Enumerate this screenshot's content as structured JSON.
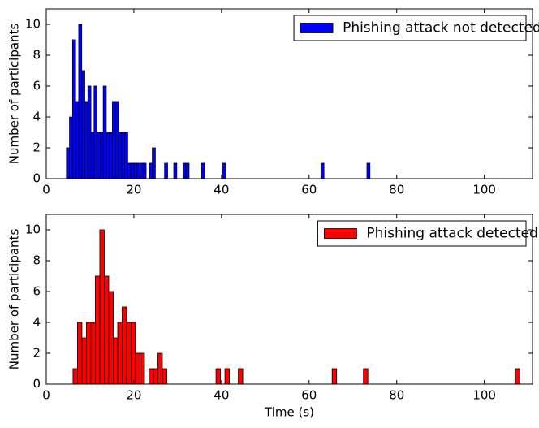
{
  "chart_data": [
    {
      "type": "histogram",
      "ylabel": "Number of participants",
      "bins": [
        4.6,
        5.3,
        6,
        6.7,
        7.4,
        8.1,
        8.8,
        9.5,
        10.2,
        10.9,
        11.6,
        12.3,
        13,
        13.7,
        14.4,
        15.1,
        15.8,
        16.5,
        17.2,
        17.9,
        18.6,
        19.3,
        20,
        20.7,
        21.4,
        22.1,
        22.8,
        23.5,
        24.2,
        24.9,
        25.6,
        26.3,
        27,
        27.7,
        28.4,
        29.1,
        29.8,
        30.5,
        31.2,
        31.9,
        32.6,
        33.3,
        34,
        34.7,
        35.4,
        36.1,
        36.8,
        37.5,
        38.2,
        38.9,
        39.6,
        40.3,
        41,
        41.7,
        42.4,
        43.1,
        43.8,
        44.5,
        45.2,
        45.9,
        46.6,
        47.3,
        48,
        48.7,
        49.4,
        50.1,
        50.8,
        51.5,
        52.2,
        52.9,
        53.6,
        54.3,
        55,
        55.7,
        56.4,
        57.1,
        57.8,
        58.5,
        59.2,
        59.9,
        60.6,
        61.3,
        62,
        62.7,
        63.4,
        64.1,
        64.8,
        65.5,
        66.2,
        66.9,
        67.6,
        68.3,
        69,
        69.7,
        70.4,
        71.1,
        71.8,
        72.5,
        73.2,
        73.9,
        74.6
      ],
      "series": [
        {
          "name": "Phishing attack not detected",
          "color": "#0000ff",
          "values": [
            2,
            4,
            9,
            5,
            10,
            7,
            5,
            6,
            3,
            6,
            3,
            3,
            6,
            3,
            3,
            5,
            5,
            3,
            3,
            3,
            1,
            1,
            1,
            1,
            1,
            1,
            0,
            1,
            2,
            0,
            0,
            0,
            1,
            0,
            0,
            1,
            0,
            0,
            1,
            1,
            0,
            0,
            0,
            0,
            1,
            0,
            0,
            0,
            0,
            0,
            0,
            1,
            0,
            0,
            0,
            0,
            0,
            0,
            0,
            0,
            0,
            0,
            0,
            0,
            0,
            0,
            0,
            0,
            0,
            0,
            0,
            0,
            0,
            0,
            0,
            0,
            0,
            0,
            0,
            0,
            0,
            0,
            0,
            1,
            0,
            0,
            0,
            0,
            0,
            0,
            0,
            0,
            0,
            0,
            0,
            0,
            0,
            0,
            1,
            0
          ]
        }
      ],
      "xlim": [
        0,
        111
      ],
      "xticks": [
        0,
        20,
        40,
        60,
        80,
        100
      ],
      "ylim": [
        0,
        11
      ],
      "yticks": [
        0,
        2,
        4,
        6,
        8,
        10
      ],
      "legend": "upper right"
    },
    {
      "type": "histogram",
      "ylabel": "Number of participants",
      "xlabel": "Time (s)",
      "bins": [
        6.1,
        7.12,
        8.14,
        9.16,
        10.18,
        11.2,
        12.22,
        13.24,
        14.26,
        15.28,
        16.3,
        17.32,
        18.34,
        19.36,
        20.38,
        21.4,
        22.42,
        23.44,
        24.46,
        25.48,
        26.5,
        27.52,
        28.54,
        29.56,
        30.58,
        31.6,
        32.62,
        33.64,
        34.66,
        35.68,
        36.7,
        37.72,
        38.74,
        39.76,
        40.78,
        41.8,
        42.82,
        43.84,
        44.86,
        45.88,
        46.9,
        47.92,
        48.94,
        49.96,
        50.98,
        52,
        53.02,
        54.04,
        55.06,
        56.08,
        57.1,
        58.12,
        59.14,
        60.16,
        61.18,
        62.2,
        63.22,
        64.24,
        65.26,
        66.28,
        67.3,
        68.32,
        69.34,
        70.36,
        71.38,
        72.4,
        73.42,
        74.44,
        75.46,
        76.48,
        77.5,
        78.52,
        79.54,
        80.56,
        81.58,
        82.6,
        83.62,
        84.64,
        85.66,
        86.68,
        87.7,
        88.72,
        89.74,
        90.76,
        91.78,
        92.8,
        93.82,
        94.84,
        95.86,
        96.88,
        97.9,
        98.92,
        99.94,
        100.96,
        101.98,
        103,
        104.02,
        105.04,
        106.06,
        107.08,
        108.1
      ],
      "series": [
        {
          "name": "Phishing attack detected",
          "color": "#ff0000",
          "values": [
            1,
            4,
            3,
            4,
            4,
            7,
            10,
            7,
            6,
            3,
            4,
            5,
            4,
            4,
            2,
            2,
            0,
            1,
            1,
            2,
            1,
            0,
            0,
            0,
            0,
            0,
            0,
            0,
            0,
            0,
            0,
            0,
            1,
            0,
            1,
            0,
            0,
            1,
            0,
            0,
            0,
            0,
            0,
            0,
            0,
            0,
            0,
            0,
            0,
            0,
            0,
            0,
            0,
            0,
            0,
            0,
            0,
            0,
            1,
            0,
            0,
            0,
            0,
            0,
            0,
            1,
            0,
            0,
            0,
            0,
            0,
            0,
            0,
            0,
            0,
            0,
            0,
            0,
            0,
            0,
            0,
            0,
            0,
            0,
            0,
            0,
            0,
            0,
            0,
            0,
            0,
            0,
            0,
            0,
            0,
            0,
            0,
            0,
            0,
            1
          ]
        }
      ],
      "xlim": [
        0,
        111
      ],
      "xticks": [
        0,
        20,
        40,
        60,
        80,
        100
      ],
      "ylim": [
        0,
        11
      ],
      "yticks": [
        0,
        2,
        4,
        6,
        8,
        10
      ],
      "legend": "upper right"
    }
  ]
}
